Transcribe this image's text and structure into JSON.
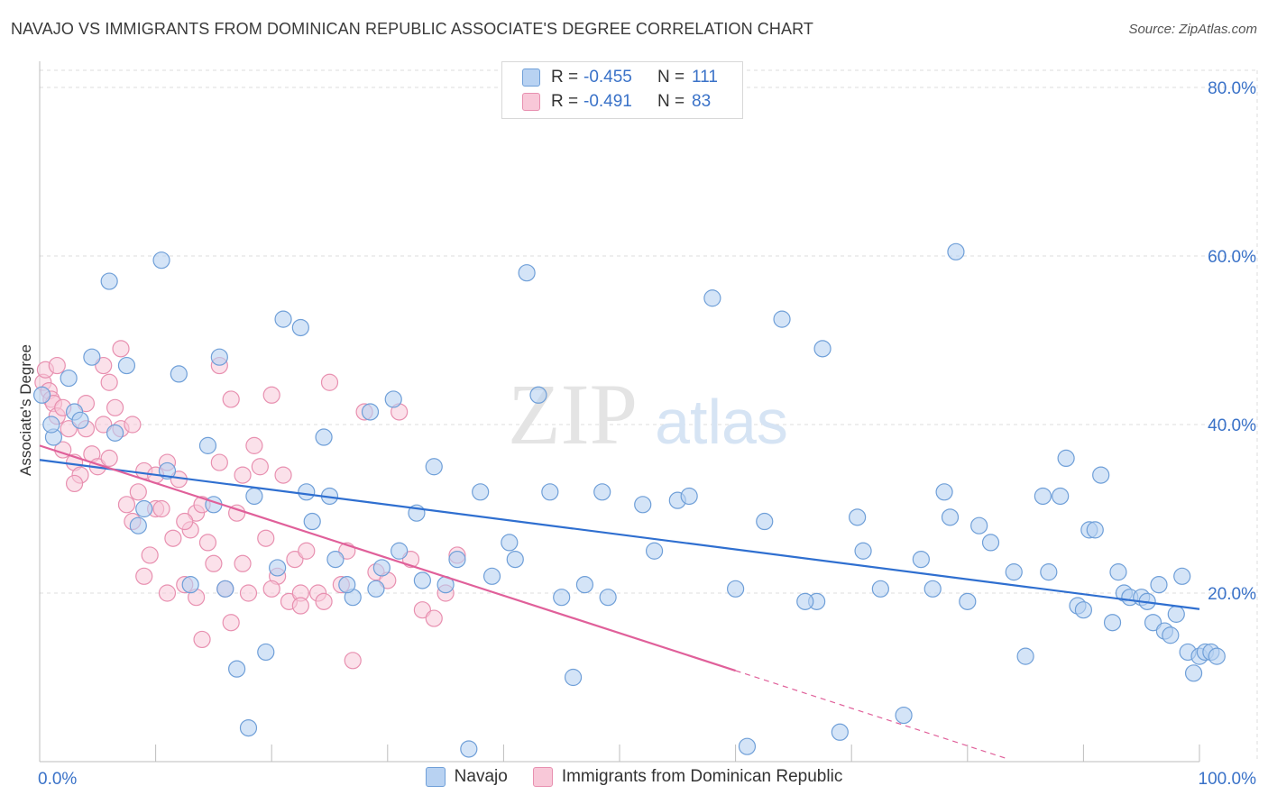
{
  "title": "NAVAJO VS IMMIGRANTS FROM DOMINICAN REPUBLIC ASSOCIATE'S DEGREE CORRELATION CHART",
  "source": "Source: ZipAtlas.com",
  "watermark": {
    "zip": "ZIP",
    "atlas": "atlas"
  },
  "colors": {
    "navajo_fill": "#b8d2f2",
    "navajo_stroke": "#6f9fd8",
    "navajo_line": "#2f6fd0",
    "dominican_fill": "#f8c8d8",
    "dominican_stroke": "#e890b0",
    "dominican_line": "#e0609a",
    "axis_text": "#3a72c8",
    "grid": "#dcdcdc"
  },
  "legend": {
    "rows": [
      {
        "r_label": "R =",
        "r_value": "-0.455",
        "n_label": "N =",
        "n_value": "111"
      },
      {
        "r_label": "R =",
        "r_value": "-0.491",
        "n_label": "N =",
        "n_value": "83"
      }
    ]
  },
  "bottom_legend": {
    "series1": "Navajo",
    "series2": "Immigrants from Dominican Republic"
  },
  "chart_data": {
    "type": "scatter",
    "title": "NAVAJO VS IMMIGRANTS FROM DOMINICAN REPUBLIC ASSOCIATE'S DEGREE CORRELATION CHART",
    "xlabel": "",
    "ylabel": "Associate's Degree",
    "xlim": [
      0,
      100
    ],
    "ylim": [
      0,
      80
    ],
    "x_tick_labels": [
      "0.0%",
      "100.0%"
    ],
    "y_ticks": [
      20,
      40,
      60,
      80
    ],
    "y_tick_labels": [
      "20.0%",
      "40.0%",
      "60.0%",
      "80.0%"
    ],
    "grid": true,
    "series": [
      {
        "name": "Navajo",
        "r": -0.455,
        "n": 111,
        "trend": {
          "x": [
            0,
            100
          ],
          "y": [
            35.8,
            18.1
          ]
        },
        "points": [
          [
            0.2,
            43.5
          ],
          [
            1.2,
            38.5
          ],
          [
            2.5,
            45.5
          ],
          [
            3.0,
            41.5
          ],
          [
            4.5,
            48.0
          ],
          [
            6.0,
            57.0
          ],
          [
            7.5,
            47.0
          ],
          [
            8.5,
            28.0
          ],
          [
            10.5,
            59.5
          ],
          [
            12.0,
            46.0
          ],
          [
            13.0,
            21.0
          ],
          [
            14.5,
            37.5
          ],
          [
            15.5,
            48.0
          ],
          [
            17.0,
            11.0
          ],
          [
            18.5,
            31.5
          ],
          [
            19.5,
            13.0
          ],
          [
            20.5,
            23.0
          ],
          [
            21.0,
            52.5
          ],
          [
            22.5,
            51.5
          ],
          [
            23.0,
            32.0
          ],
          [
            23.5,
            28.5
          ],
          [
            24.5,
            38.5
          ],
          [
            25.0,
            31.5
          ],
          [
            25.5,
            24.0
          ],
          [
            27.0,
            19.5
          ],
          [
            28.5,
            41.5
          ],
          [
            29.0,
            20.5
          ],
          [
            30.5,
            43.0
          ],
          [
            31.0,
            25.0
          ],
          [
            33.0,
            21.5
          ],
          [
            34.0,
            35.0
          ],
          [
            36.0,
            24.0
          ],
          [
            38.0,
            32.0
          ],
          [
            40.5,
            26.0
          ],
          [
            41.0,
            24.0
          ],
          [
            42.0,
            58.0
          ],
          [
            43.0,
            43.5
          ],
          [
            45.0,
            19.5
          ],
          [
            46.0,
            10.0
          ],
          [
            48.5,
            32.0
          ],
          [
            49.0,
            19.5
          ],
          [
            53.0,
            25.0
          ],
          [
            55.0,
            31.0
          ],
          [
            56.0,
            31.5
          ],
          [
            58.0,
            55.0
          ],
          [
            60.0,
            20.5
          ],
          [
            62.5,
            28.5
          ],
          [
            64.0,
            52.5
          ],
          [
            67.0,
            19.0
          ],
          [
            67.5,
            49.0
          ],
          [
            69.0,
            3.5
          ],
          [
            70.5,
            29.0
          ],
          [
            72.5,
            20.5
          ],
          [
            74.5,
            5.5
          ],
          [
            76.0,
            24.0
          ],
          [
            77.0,
            20.5
          ],
          [
            78.0,
            32.0
          ],
          [
            78.5,
            29.0
          ],
          [
            79.0,
            60.5
          ],
          [
            80.0,
            19.0
          ],
          [
            81.0,
            28.0
          ],
          [
            82.0,
            26.0
          ],
          [
            84.0,
            22.5
          ],
          [
            85.0,
            12.5
          ],
          [
            86.5,
            31.5
          ],
          [
            87.0,
            22.5
          ],
          [
            88.0,
            31.5
          ],
          [
            88.5,
            36.0
          ],
          [
            89.5,
            18.5
          ],
          [
            90.0,
            18.0
          ],
          [
            90.5,
            27.5
          ],
          [
            91.0,
            27.5
          ],
          [
            91.5,
            34.0
          ],
          [
            92.5,
            16.5
          ],
          [
            93.0,
            22.5
          ],
          [
            93.5,
            20.0
          ],
          [
            94.0,
            19.5
          ],
          [
            95.0,
            19.5
          ],
          [
            95.5,
            19.0
          ],
          [
            96.0,
            16.5
          ],
          [
            96.5,
            21.0
          ],
          [
            97.0,
            15.5
          ],
          [
            97.5,
            15.0
          ],
          [
            98.0,
            17.5
          ],
          [
            98.5,
            22.0
          ],
          [
            99.0,
            13.0
          ],
          [
            99.5,
            10.5
          ],
          [
            100.0,
            12.5
          ],
          [
            100.5,
            13.0
          ],
          [
            101.0,
            13.0
          ],
          [
            101.5,
            12.5
          ],
          [
            3.5,
            40.5
          ],
          [
            6.5,
            39.0
          ],
          [
            9.0,
            30.0
          ],
          [
            11.0,
            34.5
          ],
          [
            1.0,
            40.0
          ],
          [
            15.0,
            30.5
          ],
          [
            16.0,
            20.5
          ],
          [
            18.0,
            4.0
          ],
          [
            26.5,
            21.0
          ],
          [
            29.5,
            23.0
          ],
          [
            32.5,
            29.5
          ],
          [
            35.0,
            21.0
          ],
          [
            37.0,
            1.5
          ],
          [
            39.0,
            22.0
          ],
          [
            44.0,
            32.0
          ],
          [
            47.0,
            21.0
          ],
          [
            52.0,
            30.5
          ],
          [
            61.0,
            1.8
          ],
          [
            66.0,
            19.0
          ],
          [
            71.0,
            25.0
          ]
        ]
      },
      {
        "name": "Immigrants from Dominican Republic",
        "r": -0.491,
        "n": 83,
        "trend": {
          "x": [
            0,
            60
          ],
          "y": [
            37.5,
            10.8
          ]
        },
        "trend_extension": {
          "x": [
            60,
            83.3
          ],
          "y": [
            10.8,
            0.4
          ]
        },
        "points": [
          [
            0.3,
            45.0
          ],
          [
            0.5,
            46.5
          ],
          [
            0.8,
            44.0
          ],
          [
            1.0,
            43.0
          ],
          [
            1.2,
            42.5
          ],
          [
            1.5,
            41.0
          ],
          [
            2.0,
            37.0
          ],
          [
            2.5,
            39.5
          ],
          [
            3.0,
            35.5
          ],
          [
            3.5,
            34.0
          ],
          [
            4.0,
            39.5
          ],
          [
            4.5,
            36.5
          ],
          [
            5.0,
            35.0
          ],
          [
            5.5,
            47.0
          ],
          [
            6.0,
            45.0
          ],
          [
            6.5,
            42.0
          ],
          [
            7.0,
            39.5
          ],
          [
            7.5,
            30.5
          ],
          [
            8.0,
            28.5
          ],
          [
            8.5,
            32.0
          ],
          [
            9.0,
            34.5
          ],
          [
            9.5,
            24.5
          ],
          [
            10.0,
            30.0
          ],
          [
            10.5,
            30.0
          ],
          [
            11.0,
            35.5
          ],
          [
            11.5,
            26.5
          ],
          [
            12.0,
            33.5
          ],
          [
            12.5,
            21.0
          ],
          [
            13.0,
            27.5
          ],
          [
            13.5,
            29.5
          ],
          [
            14.0,
            30.5
          ],
          [
            14.5,
            26.0
          ],
          [
            15.0,
            23.5
          ],
          [
            15.5,
            35.5
          ],
          [
            16.0,
            20.5
          ],
          [
            16.5,
            16.5
          ],
          [
            17.0,
            29.5
          ],
          [
            17.5,
            23.5
          ],
          [
            18.0,
            20.0
          ],
          [
            18.5,
            37.5
          ],
          [
            19.0,
            35.0
          ],
          [
            19.5,
            26.5
          ],
          [
            20.0,
            43.5
          ],
          [
            20.5,
            22.0
          ],
          [
            21.0,
            34.0
          ],
          [
            21.5,
            19.0
          ],
          [
            22.0,
            24.0
          ],
          [
            22.5,
            20.0
          ],
          [
            23.0,
            25.0
          ],
          [
            24.0,
            20.0
          ],
          [
            25.0,
            45.0
          ],
          [
            26.0,
            21.0
          ],
          [
            27.0,
            12.0
          ],
          [
            28.0,
            41.5
          ],
          [
            29.0,
            22.5
          ],
          [
            30.0,
            21.5
          ],
          [
            31.0,
            41.5
          ],
          [
            32.0,
            24.0
          ],
          [
            33.0,
            18.0
          ],
          [
            34.0,
            17.0
          ],
          [
            35.0,
            20.0
          ],
          [
            36.0,
            24.5
          ],
          [
            13.5,
            19.5
          ],
          [
            14.0,
            14.5
          ],
          [
            7.0,
            49.0
          ],
          [
            10.0,
            34.0
          ],
          [
            12.5,
            28.5
          ],
          [
            15.5,
            47.0
          ],
          [
            17.5,
            34.0
          ],
          [
            20.0,
            20.5
          ],
          [
            24.5,
            19.0
          ],
          [
            5.5,
            40.0
          ],
          [
            6.0,
            36.0
          ],
          [
            4.0,
            42.5
          ],
          [
            3.0,
            33.0
          ],
          [
            2.0,
            42.0
          ],
          [
            1.5,
            47.0
          ],
          [
            8.0,
            40.0
          ],
          [
            9.0,
            22.0
          ],
          [
            11.0,
            20.0
          ],
          [
            16.5,
            43.0
          ],
          [
            22.5,
            18.5
          ],
          [
            26.5,
            25.0
          ]
        ]
      }
    ]
  }
}
